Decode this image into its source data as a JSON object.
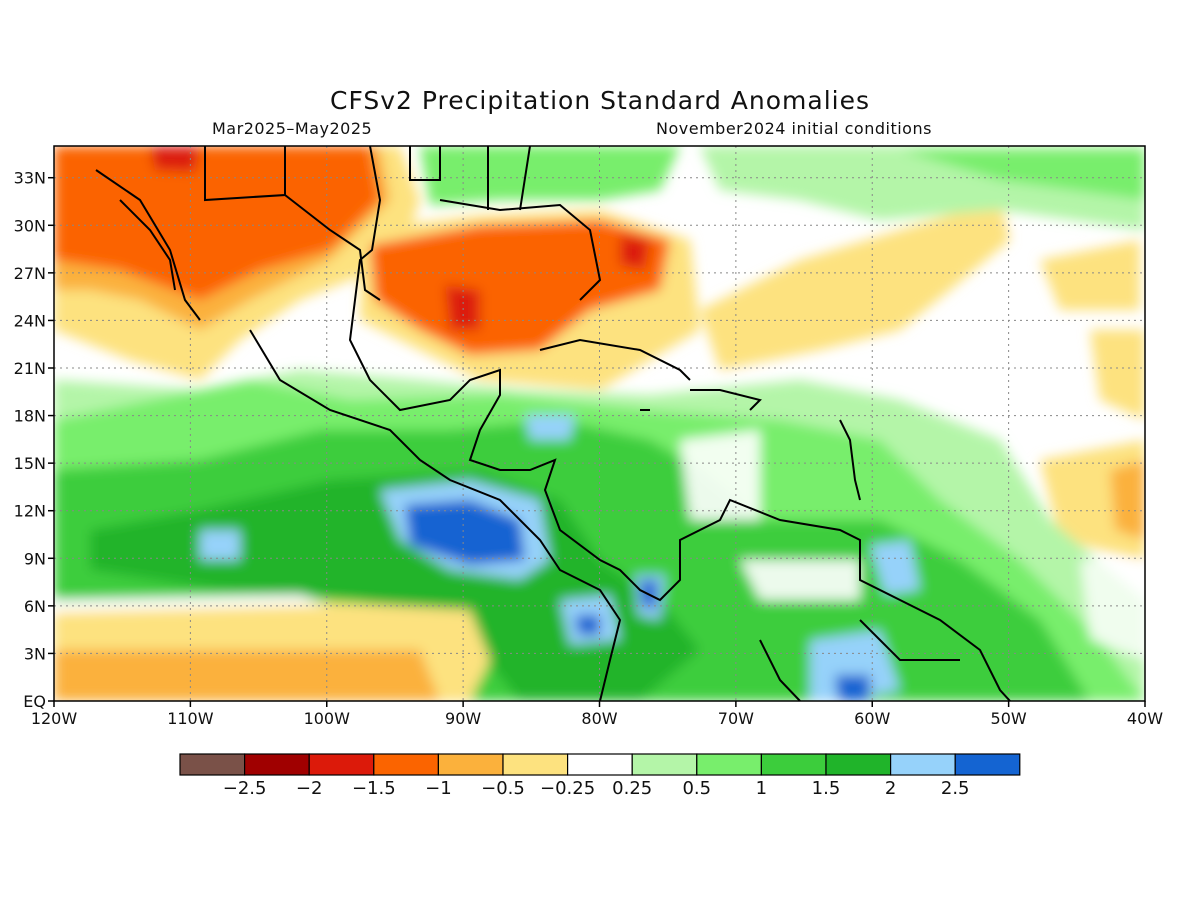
{
  "title": "CFSv2 Precipitation Standard Anomalies",
  "subtitle_left": "Mar2025–May2025",
  "subtitle_right": "November2024 initial conditions",
  "map": {
    "lon_range": [
      -120,
      -40
    ],
    "lat_range": [
      0,
      35
    ],
    "x_ticks": [
      "120W",
      "110W",
      "100W",
      "90W",
      "80W",
      "70W",
      "60W",
      "50W",
      "40W"
    ],
    "y_ticks": [
      "33N",
      "30N",
      "27N",
      "24N",
      "21N",
      "18N",
      "15N",
      "12N",
      "9N",
      "6N",
      "3N",
      "EQ"
    ],
    "y_tick_values": [
      33,
      30,
      27,
      24,
      21,
      18,
      15,
      12,
      9,
      6,
      3,
      0
    ],
    "grid": "dotted"
  },
  "colorbar": {
    "colors": [
      "#7a5148",
      "#a00000",
      "#dc1a0a",
      "#fb6400",
      "#fbb13c",
      "#fde27f",
      "#ffffff",
      "#b4f5a8",
      "#78ee6c",
      "#3ccd3c",
      "#20b42a",
      "#96d2fa",
      "#1464d2"
    ],
    "labels": [
      "−2.5",
      "−2",
      "−1.5",
      "−1",
      "−0.5",
      "−0.25",
      "0.25",
      "0.5",
      "1",
      "1.5",
      "2",
      "2.5"
    ]
  }
}
